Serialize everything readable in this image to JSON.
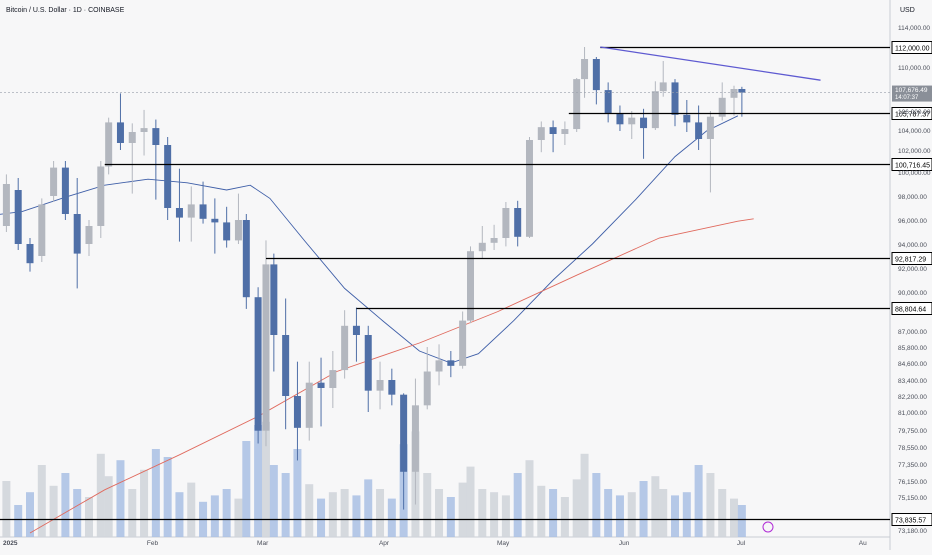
{
  "header": {
    "title": "Bitcoin / U.S. Dollar · 1D · COINBASE"
  },
  "chart_data": {
    "type": "candlestick",
    "currency": "USD",
    "x_ticks": [
      {
        "label": "2025",
        "date": "2025-01-01"
      },
      {
        "label": "Feb",
        "date": "2025-02-01"
      },
      {
        "label": "Mar",
        "date": "2025-03-01"
      },
      {
        "label": "Apr",
        "date": "2025-04-01"
      },
      {
        "label": "May",
        "date": "2025-05-01"
      },
      {
        "label": "Jun",
        "date": "2025-06-01"
      },
      {
        "label": "Jul",
        "date": "2025-07-01"
      },
      {
        "label": "Au",
        "date": "2025-08-01"
      }
    ],
    "y_ticks": [
      {
        "label": "114,000.00",
        "v": 114000
      },
      {
        "label": "110,000.00",
        "v": 110000
      },
      {
        "label": "106,000.00",
        "v": 106000
      },
      {
        "label": "104,000.00",
        "v": 104000
      },
      {
        "label": "102,000.00",
        "v": 102000
      },
      {
        "label": "100,000.00",
        "v": 100000
      },
      {
        "label": "98,000.00",
        "v": 98000
      },
      {
        "label": "96,000.00",
        "v": 96000
      },
      {
        "label": "94,000.00",
        "v": 94000
      },
      {
        "label": "92,000.00",
        "v": 92000
      },
      {
        "label": "90,000.00",
        "v": 90000
      },
      {
        "label": "87,000.00",
        "v": 87000
      },
      {
        "label": "85,800.00",
        "v": 85800
      },
      {
        "label": "84,600.00",
        "v": 84600
      },
      {
        "label": "83,400.00",
        "v": 83400
      },
      {
        "label": "82,200.00",
        "v": 82200
      },
      {
        "label": "81,000.00",
        "v": 81000
      },
      {
        "label": "79,750.00",
        "v": 79750
      },
      {
        "label": "78,550.00",
        "v": 78550
      },
      {
        "label": "77,350.00",
        "v": 77350
      },
      {
        "label": "76,150.00",
        "v": 76150
      },
      {
        "label": "75,150.00",
        "v": 75150
      },
      {
        "label": "73,180.00",
        "v": 73180
      }
    ],
    "price_levels": [
      {
        "label": "112,000.00",
        "v": 112000,
        "start": "2025-05-26"
      },
      {
        "label": "105,787.37",
        "v": 105787.37,
        "start": "2025-05-18"
      },
      {
        "label": "100,716.45",
        "v": 100716.45,
        "start": "2025-01-20"
      },
      {
        "label": "92,817.29",
        "v": 92817.29,
        "start": "2025-03-02"
      },
      {
        "label": "88,804.64",
        "v": 88804.64,
        "start": "2025-03-25"
      },
      {
        "label": "73,835.57",
        "v": 73835.57,
        "start": "2024-12-20"
      }
    ],
    "last_price": {
      "label": "107,676.49",
      "countdown": "14:07:37",
      "v": 107676.49
    },
    "trendline": {
      "start": {
        "date": "2025-05-26",
        "v": 112000
      },
      "end": {
        "date": "2025-07-21",
        "v": 108800
      }
    },
    "series": [
      {
        "name": "",
        "kind": "sma",
        "color": "#3f5fa8",
        "points": [
          {
            "date": "2024-12-20",
            "v": 96300
          },
          {
            "date": "2024-12-30",
            "v": 96700
          },
          {
            "date": "2025-01-10",
            "v": 97900
          },
          {
            "date": "2025-01-20",
            "v": 98900
          },
          {
            "date": "2025-01-31",
            "v": 99400
          },
          {
            "date": "2025-02-10",
            "v": 99100
          },
          {
            "date": "2025-02-20",
            "v": 98500
          },
          {
            "date": "2025-02-26",
            "v": 98900
          },
          {
            "date": "2025-03-03",
            "v": 97800
          },
          {
            "date": "2025-03-12",
            "v": 94200
          },
          {
            "date": "2025-03-22",
            "v": 90300
          },
          {
            "date": "2025-04-01",
            "v": 87700
          },
          {
            "date": "2025-04-10",
            "v": 85500
          },
          {
            "date": "2025-04-18",
            "v": 84600
          },
          {
            "date": "2025-04-25",
            "v": 85300
          },
          {
            "date": "2025-05-04",
            "v": 87800
          },
          {
            "date": "2025-05-14",
            "v": 91000
          },
          {
            "date": "2025-05-24",
            "v": 94000
          },
          {
            "date": "2025-06-04",
            "v": 97700
          },
          {
            "date": "2025-06-14",
            "v": 101400
          },
          {
            "date": "2025-06-22",
            "v": 103900
          },
          {
            "date": "2025-06-30",
            "v": 105500
          }
        ]
      },
      {
        "name": "",
        "kind": "sma",
        "color": "#e06a5e",
        "points": [
          {
            "date": "2025-01-01",
            "v": 73000
          },
          {
            "date": "2025-01-20",
            "v": 75600
          },
          {
            "date": "2025-02-08",
            "v": 78000
          },
          {
            "date": "2025-02-28",
            "v": 80700
          },
          {
            "date": "2025-03-20",
            "v": 84000
          },
          {
            "date": "2025-04-10",
            "v": 86100
          },
          {
            "date": "2025-04-30",
            "v": 88500
          },
          {
            "date": "2025-05-20",
            "v": 91400
          },
          {
            "date": "2025-06-10",
            "v": 94500
          },
          {
            "date": "2025-06-30",
            "v": 95900
          },
          {
            "date": "2025-07-04",
            "v": 96100
          }
        ]
      }
    ],
    "candles": [
      [
        "2024-12-20",
        97000,
        97800,
        94600,
        95400
      ],
      [
        "2024-12-23",
        95400,
        96600,
        92500,
        94500
      ],
      [
        "2024-12-26",
        95500,
        99800,
        95000,
        99000
      ],
      [
        "2024-12-29",
        98500,
        99500,
        93500,
        94000
      ],
      [
        "2025-01-01",
        94000,
        94500,
        91700,
        92400
      ],
      [
        "2025-01-04",
        93000,
        97800,
        92500,
        97300
      ],
      [
        "2025-01-07",
        98000,
        101000,
        97500,
        100400
      ],
      [
        "2025-01-10",
        100400,
        101000,
        96000,
        96500
      ],
      [
        "2025-01-13",
        96500,
        99500,
        90300,
        93200
      ],
      [
        "2025-01-16",
        94000,
        96000,
        93000,
        95500
      ],
      [
        "2025-01-19",
        95500,
        101000,
        94500,
        100500
      ],
      [
        "2025-01-21",
        100500,
        105300,
        99800,
        104800
      ],
      [
        "2025-01-24",
        104800,
        107600,
        102000,
        102700
      ],
      [
        "2025-01-27",
        102700,
        104700,
        98200,
        103800
      ],
      [
        "2025-01-30",
        103800,
        106100,
        101500,
        104200
      ],
      [
        "2025-02-02",
        104200,
        105100,
        97700,
        102500
      ],
      [
        "2025-02-05",
        102500,
        103300,
        96000,
        97000
      ],
      [
        "2025-02-08",
        97000,
        100300,
        94200,
        96200
      ],
      [
        "2025-02-11",
        96200,
        98800,
        94200,
        97300
      ],
      [
        "2025-02-14",
        97300,
        99200,
        95700,
        96100
      ],
      [
        "2025-02-17",
        96100,
        97800,
        93200,
        95800
      ],
      [
        "2025-02-20",
        95800,
        97100,
        93700,
        94300
      ],
      [
        "2025-02-23",
        94300,
        98200,
        94000,
        96000
      ],
      [
        "2025-02-25",
        96000,
        96500,
        88700,
        89600
      ],
      [
        "2025-02-28",
        89600,
        90400,
        78800,
        79700
      ],
      [
        "2025-03-02",
        79700,
        94300,
        78600,
        92300
      ],
      [
        "2025-03-04",
        92300,
        93200,
        84000,
        86700
      ],
      [
        "2025-03-07",
        86700,
        89500,
        79800,
        82200
      ],
      [
        "2025-03-10",
        82200,
        84700,
        77600,
        79900
      ],
      [
        "2025-03-13",
        79900,
        84700,
        79000,
        83200
      ],
      [
        "2025-03-16",
        83200,
        85000,
        80000,
        82800
      ],
      [
        "2025-03-19",
        82800,
        85500,
        81300,
        84100
      ],
      [
        "2025-03-22",
        84100,
        88600,
        83500,
        87400
      ],
      [
        "2025-03-25",
        87400,
        88800,
        84700,
        86700
      ],
      [
        "2025-03-28",
        86700,
        87400,
        81000,
        82600
      ],
      [
        "2025-03-31",
        82600,
        84700,
        81200,
        83400
      ],
      [
        "2025-04-03",
        83400,
        84200,
        81500,
        82300
      ],
      [
        "2025-04-06",
        82300,
        82400,
        74400,
        76800
      ],
      [
        "2025-04-09",
        76800,
        83500,
        74700,
        81500
      ],
      [
        "2025-04-12",
        81500,
        85800,
        81200,
        84000
      ],
      [
        "2025-04-15",
        84000,
        86000,
        83000,
        84800
      ],
      [
        "2025-04-18",
        84800,
        85500,
        83600,
        84400
      ],
      [
        "2025-04-21",
        84400,
        88500,
        84200,
        87800
      ],
      [
        "2025-04-23",
        87800,
        93800,
        87600,
        93400
      ],
      [
        "2025-04-26",
        93400,
        95500,
        92800,
        94100
      ],
      [
        "2025-04-29",
        94100,
        95600,
        93500,
        94500
      ],
      [
        "2025-05-02",
        94500,
        97500,
        93800,
        97000
      ],
      [
        "2025-05-05",
        97000,
        97600,
        93800,
        94600
      ],
      [
        "2025-05-08",
        94600,
        103300,
        94500,
        103000
      ],
      [
        "2025-05-11",
        103000,
        104900,
        101800,
        104300
      ],
      [
        "2025-05-14",
        104300,
        105000,
        101800,
        103600
      ],
      [
        "2025-05-17",
        103600,
        104900,
        102500,
        104100
      ],
      [
        "2025-05-20",
        104100,
        109000,
        103800,
        108900
      ],
      [
        "2025-05-22",
        108900,
        112000,
        107200,
        110800
      ],
      [
        "2025-05-25",
        110800,
        111000,
        106600,
        107900
      ],
      [
        "2025-05-28",
        107900,
        108600,
        104800,
        105700
      ],
      [
        "2025-05-31",
        105700,
        106500,
        103900,
        104600
      ],
      [
        "2025-06-03",
        104600,
        106000,
        103100,
        105300
      ],
      [
        "2025-06-06",
        105300,
        106200,
        101200,
        104200
      ],
      [
        "2025-06-09",
        104200,
        108700,
        104000,
        107800
      ],
      [
        "2025-06-11",
        107800,
        110600,
        107300,
        108600
      ],
      [
        "2025-06-14",
        108600,
        108900,
        104400,
        105600
      ],
      [
        "2025-06-17",
        105600,
        107000,
        103800,
        104800
      ],
      [
        "2025-06-20",
        104800,
        106500,
        102000,
        103100
      ],
      [
        "2025-06-23",
        103100,
        106000,
        98300,
        105400
      ],
      [
        "2025-06-26",
        105400,
        108600,
        105000,
        107200
      ],
      [
        "2025-06-29",
        107200,
        108300,
        105500,
        108000
      ],
      [
        "2025-07-01",
        108000,
        108200,
        105400,
        107676
      ]
    ],
    "volume": [
      18,
      22,
      35,
      20,
      28,
      45,
      32,
      40,
      30,
      25,
      52,
      38,
      48,
      30,
      42,
      55,
      50,
      28,
      34,
      22,
      26,
      30,
      24,
      60,
      70,
      72,
      45,
      40,
      55,
      33,
      24,
      28,
      30,
      26,
      36,
      30,
      24,
      58,
      66,
      40,
      30,
      25,
      34,
      44,
      30,
      28,
      26,
      40,
      48,
      32,
      30,
      25,
      36,
      52,
      40,
      30,
      26,
      28,
      35,
      38,
      30,
      26,
      28,
      45,
      40,
      30,
      24,
      20
    ]
  }
}
